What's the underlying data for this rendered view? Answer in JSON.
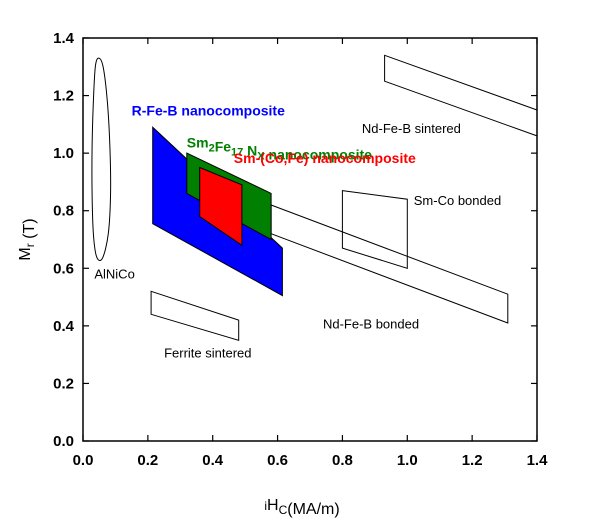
{
  "chart_data": {
    "type": "region",
    "xlabel": "ᵢHᴄ(MA/m)",
    "ylabel": "Mᵣ (T)",
    "xlim": [
      0.0,
      1.4
    ],
    "ylim": [
      0.0,
      1.4
    ],
    "x_ticks": [
      "0.0",
      "0.2",
      "0.4",
      "0.6",
      "0.8",
      "1.0",
      "1.2",
      "1.4"
    ],
    "y_ticks": [
      "0.0",
      "0.2",
      "0.4",
      "0.6",
      "0.8",
      "1.0",
      "1.2",
      "1.4"
    ],
    "grid": false,
    "regions": [
      {
        "name": "AlNiCo",
        "style": "outline",
        "shape": "ellipse",
        "points": [
          [
            0.048,
            1.33
          ],
          [
            0.062,
            1.3
          ],
          [
            0.075,
            1.18
          ],
          [
            0.083,
            1.02
          ],
          [
            0.085,
            0.86
          ],
          [
            0.078,
            0.72
          ],
          [
            0.06,
            0.635
          ],
          [
            0.042,
            0.64
          ],
          [
            0.032,
            0.72
          ],
          [
            0.028,
            0.86
          ],
          [
            0.028,
            1.02
          ],
          [
            0.032,
            1.18
          ],
          [
            0.038,
            1.3
          ]
        ],
        "label": "AlNiCo",
        "label_at": [
          0.035,
          0.565
        ]
      },
      {
        "name": "Nd-Fe-B sintered",
        "style": "outline",
        "points": [
          [
            0.93,
            1.34
          ],
          [
            1.4,
            1.15
          ],
          [
            1.4,
            1.06
          ],
          [
            0.93,
            1.25
          ]
        ],
        "label": "Nd-Fe-B sintered",
        "label_at": [
          0.86,
          1.07
        ]
      },
      {
        "name": "Sm-Co bonded",
        "style": "outline",
        "points": [
          [
            0.8,
            0.87
          ],
          [
            1.0,
            0.84
          ],
          [
            1.0,
            0.6
          ],
          [
            0.8,
            0.67
          ]
        ],
        "label": "Sm-Co bonded",
        "label_at": [
          1.02,
          0.82
        ]
      },
      {
        "name": "Nd-Fe-B bonded",
        "style": "outline",
        "points": [
          [
            0.58,
            0.82
          ],
          [
            1.31,
            0.51
          ],
          [
            1.31,
            0.41
          ],
          [
            0.58,
            0.72
          ]
        ],
        "label": "Nd-Fe-B bonded",
        "label_at": [
          0.74,
          0.39
        ]
      },
      {
        "name": "Ferrite sintered",
        "style": "outline",
        "points": [
          [
            0.21,
            0.52
          ],
          [
            0.48,
            0.42
          ],
          [
            0.48,
            0.35
          ],
          [
            0.21,
            0.44
          ]
        ],
        "label": "Ferrite sintered",
        "label_at": [
          0.25,
          0.29
        ]
      },
      {
        "name": "R-Fe-B nanocomposite",
        "style": "filled",
        "color": "#0000ff",
        "points": [
          [
            0.215,
            1.09
          ],
          [
            0.615,
            0.67
          ],
          [
            0.615,
            0.505
          ],
          [
            0.215,
            0.755
          ]
        ],
        "label": "R-Fe-B nanocomposite",
        "label_at": [
          0.15,
          1.13
        ]
      },
      {
        "name": "Sm2Fe17Nx nanocomposite",
        "style": "filled",
        "color": "#007f00",
        "points": [
          [
            0.32,
            1.0
          ],
          [
            0.58,
            0.86
          ],
          [
            0.58,
            0.7
          ],
          [
            0.32,
            0.86
          ]
        ],
        "label": "Sm2Fe17Nx nanocomposite",
        "label_parts": [
          {
            "text": "Sm",
            "sub": "2"
          },
          {
            "text": "Fe",
            "sub": "17"
          },
          {
            "text": " N",
            "sub": "X"
          },
          {
            "text": " nanocomposite",
            "sub": ""
          }
        ],
        "label_at": [
          0.32,
          1.02
        ]
      },
      {
        "name": "Sm-(Co,Fe) nanocomposite",
        "style": "filled",
        "color": "#ff0000",
        "points": [
          [
            0.36,
            0.95
          ],
          [
            0.49,
            0.89
          ],
          [
            0.49,
            0.68
          ],
          [
            0.36,
            0.78
          ]
        ],
        "label": "Sm-(Co,Fe) nanocomposite",
        "label_at": [
          0.465,
          0.965
        ]
      }
    ]
  }
}
